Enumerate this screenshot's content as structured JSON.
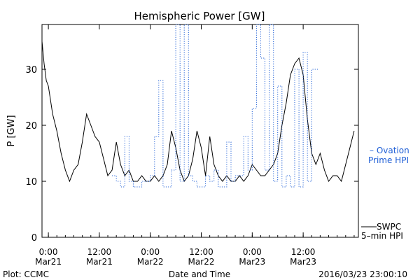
{
  "chart_data": {
    "type": "line",
    "title": "Hemispheric Power [GW]",
    "ylabel": "P [GW]",
    "xlabel": "Date and Time",
    "ylim": [
      0,
      38
    ],
    "yticks": [
      0,
      10,
      20,
      30
    ],
    "xlim": [
      "2016-03-20 22:30",
      "2016-03-24 01:00"
    ],
    "xticks": [
      {
        "t": "2016-03-21 00:00",
        "line1": "0:00",
        "line2": "Mar21"
      },
      {
        "t": "2016-03-21 12:00",
        "line1": "12:00",
        "line2": "Mar21"
      },
      {
        "t": "2016-03-22 00:00",
        "line1": "0:00",
        "line2": "Mar22"
      },
      {
        "t": "2016-03-22 12:00",
        "line1": "12:00",
        "line2": "Mar22"
      },
      {
        "t": "2016-03-23 00:00",
        "line1": "0:00",
        "line2": "Mar23"
      },
      {
        "t": "2016-03-23 12:00",
        "line1": "12:00",
        "line2": "Mar23"
      }
    ],
    "series": [
      {
        "name": "SWPC 5-min HPI",
        "legend_lines": [
          "SWPC",
          "5–min HPI"
        ],
        "color": "#000000",
        "style": "solid",
        "x": [
          "2016-03-20 22:30",
          "2016-03-20 23:00",
          "2016-03-20 23:30",
          "2016-03-21 00:00",
          "2016-03-21 01:00",
          "2016-03-21 02:00",
          "2016-03-21 03:00",
          "2016-03-21 04:00",
          "2016-03-21 05:00",
          "2016-03-21 06:00",
          "2016-03-21 07:00",
          "2016-03-21 08:00",
          "2016-03-21 09:00",
          "2016-03-21 10:00",
          "2016-03-21 11:00",
          "2016-03-21 12:00",
          "2016-03-21 13:00",
          "2016-03-21 14:00",
          "2016-03-21 15:00",
          "2016-03-21 16:00",
          "2016-03-21 17:00",
          "2016-03-21 18:00",
          "2016-03-21 19:00",
          "2016-03-21 20:00",
          "2016-03-21 21:00",
          "2016-03-21 22:00",
          "2016-03-21 23:00",
          "2016-03-22 00:00",
          "2016-03-22 01:00",
          "2016-03-22 02:00",
          "2016-03-22 03:00",
          "2016-03-22 04:00",
          "2016-03-22 05:00",
          "2016-03-22 06:00",
          "2016-03-22 07:00",
          "2016-03-22 08:00",
          "2016-03-22 09:00",
          "2016-03-22 10:00",
          "2016-03-22 11:00",
          "2016-03-22 12:00",
          "2016-03-22 13:00",
          "2016-03-22 14:00",
          "2016-03-22 15:00",
          "2016-03-22 16:00",
          "2016-03-22 17:00",
          "2016-03-22 18:00",
          "2016-03-22 19:00",
          "2016-03-22 20:00",
          "2016-03-22 21:00",
          "2016-03-22 22:00",
          "2016-03-22 23:00",
          "2016-03-23 00:00",
          "2016-03-23 01:00",
          "2016-03-23 02:00",
          "2016-03-23 03:00",
          "2016-03-23 04:00",
          "2016-03-23 05:00",
          "2016-03-23 06:00",
          "2016-03-23 07:00",
          "2016-03-23 08:00",
          "2016-03-23 09:00",
          "2016-03-23 10:00",
          "2016-03-23 11:00",
          "2016-03-23 12:00",
          "2016-03-23 13:00",
          "2016-03-23 14:00",
          "2016-03-23 15:00",
          "2016-03-23 16:00",
          "2016-03-23 17:00",
          "2016-03-23 18:00",
          "2016-03-23 19:00",
          "2016-03-23 20:00",
          "2016-03-23 21:00",
          "2016-03-23 22:00",
          "2016-03-23 23:00",
          "2016-03-24 00:00"
        ],
        "values": [
          35,
          31,
          28,
          27,
          22,
          19,
          15,
          12,
          10,
          12,
          13,
          17,
          22,
          20,
          18,
          17,
          14,
          11,
          12,
          17,
          13,
          11,
          12,
          10,
          10,
          11,
          10,
          10,
          11,
          10,
          11,
          13,
          19,
          16,
          12,
          10,
          11,
          14,
          19,
          16,
          11,
          18,
          13,
          11,
          10,
          11,
          10,
          10,
          11,
          10,
          11,
          13,
          12,
          11,
          11,
          12,
          13,
          15,
          20,
          24,
          29,
          31,
          32,
          29,
          21,
          15,
          13,
          15,
          12,
          10,
          11,
          11,
          10,
          13,
          16,
          19
        ]
      },
      {
        "name": "Ovation Prime HPI",
        "legend_lines": [
          "– Ovation",
          "Prime HPI"
        ],
        "color": "#1f5fd6",
        "style": "dotted",
        "steps": [
          [
            "2016-03-21 15:00",
            11
          ],
          [
            "2016-03-21 16:00",
            10
          ],
          [
            "2016-03-21 17:00",
            9
          ],
          [
            "2016-03-21 18:00",
            18
          ],
          [
            "2016-03-21 19:00",
            10
          ],
          [
            "2016-03-21 20:00",
            9
          ],
          [
            "2016-03-21 22:00",
            10
          ],
          [
            "2016-03-22 00:00",
            11
          ],
          [
            "2016-03-22 01:00",
            18
          ],
          [
            "2016-03-22 02:00",
            28
          ],
          [
            "2016-03-22 03:00",
            9
          ],
          [
            "2016-03-22 05:00",
            12
          ],
          [
            "2016-03-22 06:00",
            38
          ],
          [
            "2016-03-22 07:00",
            10
          ],
          [
            "2016-03-22 08:00",
            38
          ],
          [
            "2016-03-22 09:00",
            11
          ],
          [
            "2016-03-22 10:00",
            10
          ],
          [
            "2016-03-22 11:00",
            9
          ],
          [
            "2016-03-22 13:00",
            11
          ],
          [
            "2016-03-22 14:00",
            10
          ],
          [
            "2016-03-22 15:00",
            12
          ],
          [
            "2016-03-22 16:00",
            9
          ],
          [
            "2016-03-22 18:00",
            17
          ],
          [
            "2016-03-22 19:00",
            10
          ],
          [
            "2016-03-22 20:00",
            11
          ],
          [
            "2016-03-22 22:00",
            18
          ],
          [
            "2016-03-22 23:00",
            12
          ],
          [
            "2016-03-23 00:00",
            23
          ],
          [
            "2016-03-23 01:00",
            38
          ],
          [
            "2016-03-23 02:00",
            32
          ],
          [
            "2016-03-23 03:00",
            12
          ],
          [
            "2016-03-23 04:00",
            38
          ],
          [
            "2016-03-23 05:00",
            10
          ],
          [
            "2016-03-23 06:00",
            27
          ],
          [
            "2016-03-23 07:00",
            9
          ],
          [
            "2016-03-23 08:00",
            11
          ],
          [
            "2016-03-23 09:00",
            9
          ],
          [
            "2016-03-23 10:00",
            30
          ],
          [
            "2016-03-23 11:00",
            9
          ],
          [
            "2016-03-23 12:00",
            33
          ],
          [
            "2016-03-23 13:00",
            10
          ],
          [
            "2016-03-23 14:00",
            30
          ],
          [
            "2016-03-23 15:00",
            30
          ]
        ]
      }
    ]
  },
  "footer": {
    "plot_credit": "Plot: CCMC",
    "timestamp": "2016/03/23 23:00:10"
  }
}
